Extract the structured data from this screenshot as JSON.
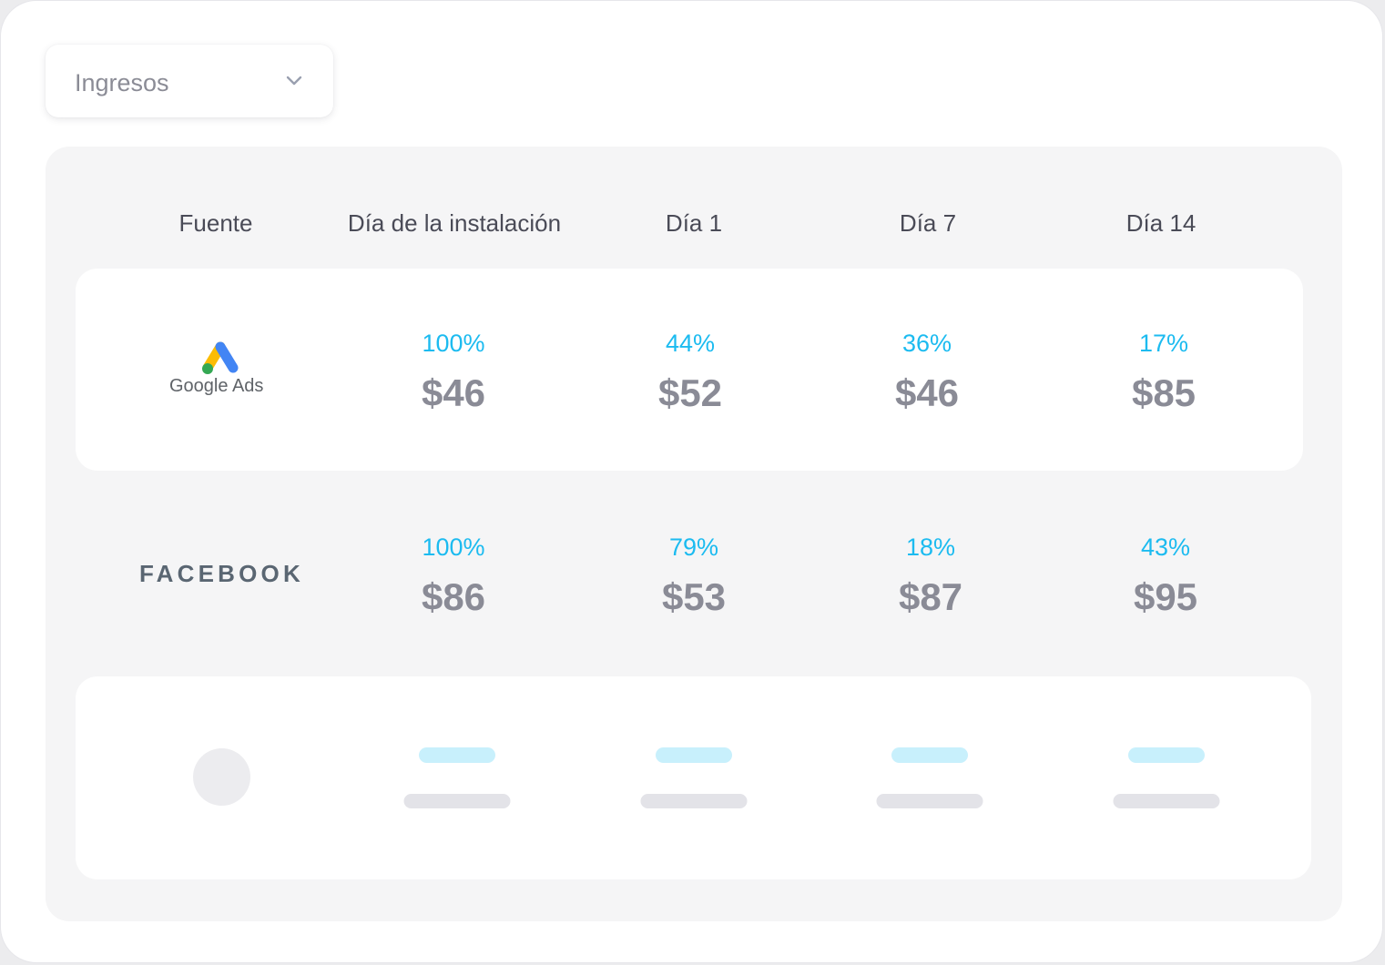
{
  "metric_selector": {
    "value": "Ingresos",
    "icon": "chevron-down-icon"
  },
  "table": {
    "headers": {
      "source": "Fuente",
      "install_day": "Día de la instalación",
      "day1": "Día 1",
      "day7": "Día 7",
      "day14": "Día 14"
    },
    "rows": [
      {
        "source_label": "Google Ads",
        "install_day": {
          "pct": "100%",
          "value": "$46"
        },
        "day1": {
          "pct": "44%",
          "value": "$52"
        },
        "day7": {
          "pct": "36%",
          "value": "$46"
        },
        "day14": {
          "pct": "17%",
          "value": "$85"
        }
      },
      {
        "source_label": "FACEBOOK",
        "install_day": {
          "pct": "100%",
          "value": "$86"
        },
        "day1": {
          "pct": "79%",
          "value": "$53"
        },
        "day7": {
          "pct": "18%",
          "value": "$87"
        },
        "day14": {
          "pct": "43%",
          "value": "$95"
        }
      }
    ]
  },
  "colors": {
    "accent": "#1cbbf0",
    "value_text": "#8a8b96",
    "panel_bg": "#f5f5f6",
    "skeleton_blue": "#c8f0fc",
    "skeleton_gray": "#e3e3e8"
  }
}
